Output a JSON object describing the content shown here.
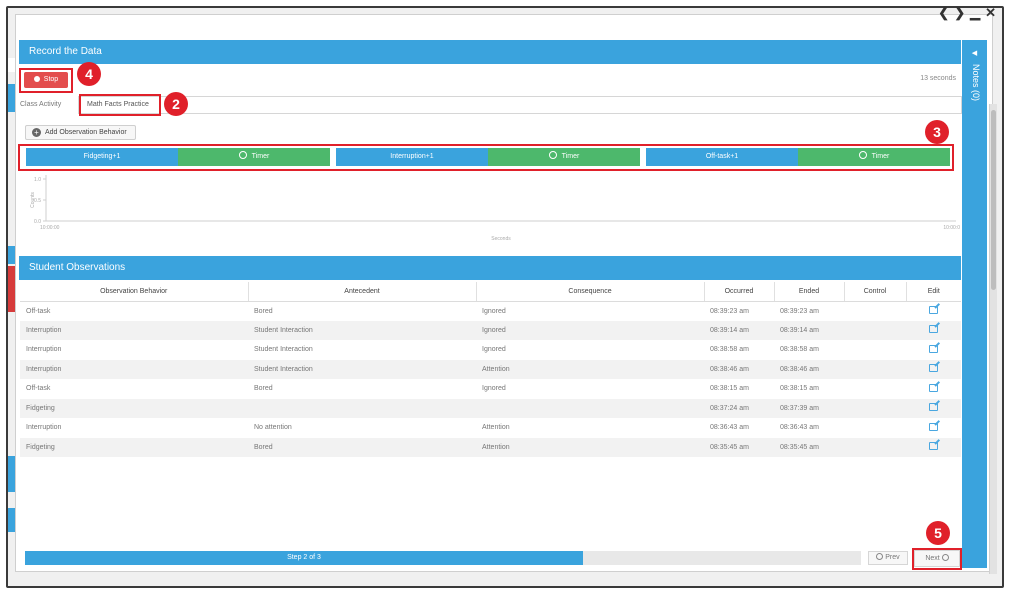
{
  "window_controls": {
    "prev": "❮",
    "next": "❯",
    "minimize": "▁",
    "close": "✕"
  },
  "record": {
    "title": "Record the Data",
    "stop_label": "Stop",
    "elapsed": "13 seconds",
    "activity_label": "Class Activity",
    "activity_value": "Math Facts Practice",
    "add_behavior_label": "Add Observation Behavior",
    "behaviors": [
      {
        "name": "Fidgeting+1",
        "timer": "Timer"
      },
      {
        "name": "Interruption+1",
        "timer": "Timer"
      },
      {
        "name": "Off-task+1",
        "timer": "Timer"
      }
    ]
  },
  "chart_data": {
    "type": "line",
    "y_ticks": [
      "1.0",
      "0.5",
      "0.0"
    ],
    "ylabel": "Counts",
    "x_ticks": [
      "10:00:00",
      "10:00:0"
    ],
    "xlabel": "Seconds",
    "ylim": [
      0,
      1
    ],
    "series": []
  },
  "notes_label": "Notes (0)",
  "observations": {
    "title": "Student Observations",
    "columns": [
      "Observation Behavior",
      "Antecedent",
      "Consequence",
      "Occurred",
      "Ended",
      "Control",
      "Edit"
    ],
    "rows": [
      [
        "Off-task",
        "Bored",
        "Ignored",
        "08:39:23 am",
        "08:39:23 am",
        ""
      ],
      [
        "Interruption",
        "Student Interaction",
        "Ignored",
        "08:39:14 am",
        "08:39:14 am",
        ""
      ],
      [
        "Interruption",
        "Student Interaction",
        "Ignored",
        "08:38:58 am",
        "08:38:58 am",
        ""
      ],
      [
        "Interruption",
        "Student Interaction",
        "Attention",
        "08:38:46 am",
        "08:38:46 am",
        ""
      ],
      [
        "Off-task",
        "Bored",
        "Ignored",
        "08:38:15 am",
        "08:38:15 am",
        ""
      ],
      [
        "Fidgeting",
        "",
        "",
        "08:37:24 am",
        "08:37:39 am",
        ""
      ],
      [
        "Interruption",
        "No attention",
        "Attention",
        "08:36:43 am",
        "08:36:43 am",
        ""
      ],
      [
        "Fidgeting",
        "Bored",
        "Attention",
        "08:35:45 am",
        "08:35:45 am",
        ""
      ]
    ]
  },
  "footer": {
    "step_label": "Step 2 of 3",
    "step_progress": 0.667,
    "prev_label": "Prev",
    "next_label": "Next"
  },
  "callouts": [
    "4",
    "2",
    "3",
    "5"
  ],
  "colors": {
    "accent": "#3aa3dd",
    "timer": "#4db86c",
    "stop": "#e34d4d",
    "callout": "#e0202a"
  }
}
